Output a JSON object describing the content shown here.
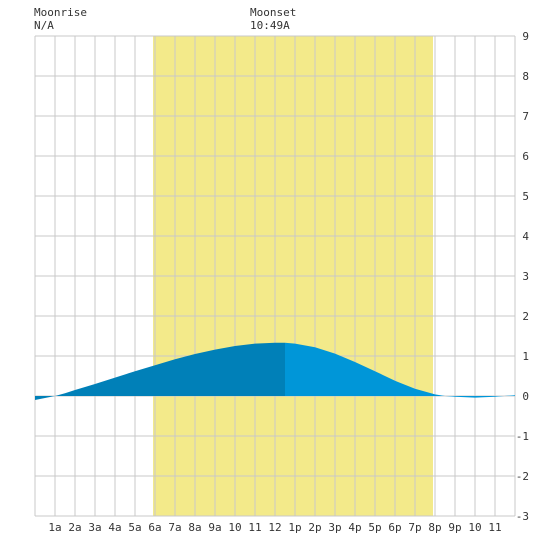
{
  "header": {
    "moonrise_label": "Moonrise",
    "moonrise_value": "N/A",
    "moonset_label": "Moonset",
    "moonset_value": "10:49A"
  },
  "colors": {
    "background": "#ffffff",
    "daylight": "#f3ea8a",
    "grid": "#c8c8c8",
    "tide_past": "#0080b8",
    "tide_future": "#0096d8"
  },
  "chart_data": {
    "type": "area",
    "x_unit": "hour of day",
    "xlim": [
      0,
      24
    ],
    "ylim": [
      -3,
      9
    ],
    "grid": true,
    "x_ticks": [
      {
        "x": 1,
        "label": "1a"
      },
      {
        "x": 2,
        "label": "2a"
      },
      {
        "x": 3,
        "label": "3a"
      },
      {
        "x": 4,
        "label": "4a"
      },
      {
        "x": 5,
        "label": "5a"
      },
      {
        "x": 6,
        "label": "6a"
      },
      {
        "x": 7,
        "label": "7a"
      },
      {
        "x": 8,
        "label": "8a"
      },
      {
        "x": 9,
        "label": "9a"
      },
      {
        "x": 10,
        "label": "10"
      },
      {
        "x": 11,
        "label": "11"
      },
      {
        "x": 12,
        "label": "12"
      },
      {
        "x": 13,
        "label": "1p"
      },
      {
        "x": 14,
        "label": "2p"
      },
      {
        "x": 15,
        "label": "3p"
      },
      {
        "x": 16,
        "label": "4p"
      },
      {
        "x": 17,
        "label": "5p"
      },
      {
        "x": 18,
        "label": "6p"
      },
      {
        "x": 19,
        "label": "7p"
      },
      {
        "x": 20,
        "label": "8p"
      },
      {
        "x": 21,
        "label": "9p"
      },
      {
        "x": 22,
        "label": "10"
      },
      {
        "x": 23,
        "label": "11"
      }
    ],
    "y_ticks": [
      9,
      8,
      7,
      6,
      5,
      4,
      3,
      2,
      1,
      0,
      -1,
      -2,
      -3
    ],
    "daylight": {
      "start": 5.9,
      "end": 19.9
    },
    "current_time": 12.5,
    "series": [
      {
        "x": [
          0,
          0.5,
          1,
          1.5,
          2,
          3,
          4,
          5,
          6,
          7,
          8,
          9,
          10,
          11,
          12,
          12.5,
          13,
          14,
          15,
          16,
          17,
          18,
          19,
          20,
          20.5,
          21,
          22,
          23,
          24
        ],
        "y": [
          -0.1,
          -0.05,
          0.0,
          0.07,
          0.15,
          0.3,
          0.46,
          0.62,
          0.77,
          0.92,
          1.05,
          1.16,
          1.25,
          1.31,
          1.33,
          1.33,
          1.31,
          1.22,
          1.06,
          0.85,
          0.62,
          0.38,
          0.18,
          0.04,
          0.0,
          -0.02,
          -0.04,
          -0.02,
          0.02
        ]
      }
    ]
  }
}
